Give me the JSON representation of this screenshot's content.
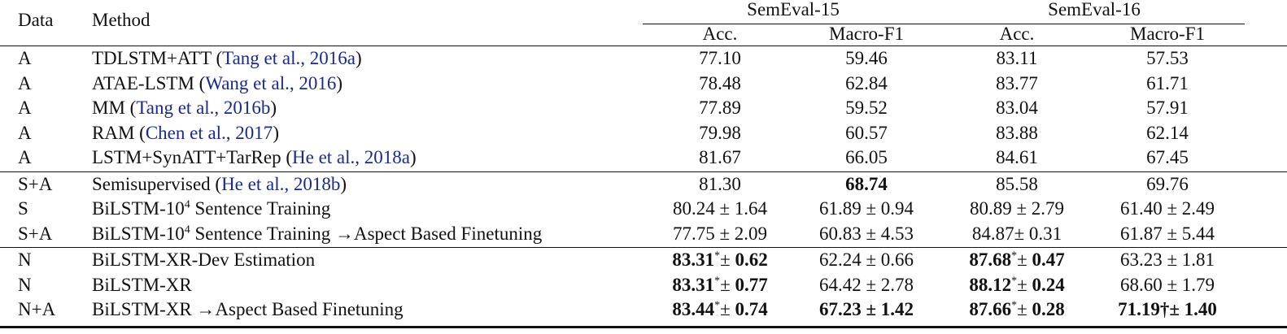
{
  "table": {
    "header": {
      "data": "Data",
      "method": "Method",
      "groups": [
        {
          "title": "SemEval-15",
          "columns": [
            "Acc.",
            "Macro-F1"
          ]
        },
        {
          "title": "SemEval-16",
          "columns": [
            "Acc.",
            "Macro-F1"
          ]
        }
      ]
    },
    "sections": [
      [
        {
          "data": "A",
          "method": [
            {
              "text": "TDLSTM+ATT ("
            },
            {
              "text": "Tang et al., 2016a",
              "cite": true
            },
            {
              "text": ")"
            }
          ],
          "cells": [
            "77.10",
            "59.46",
            "83.11",
            "57.53"
          ]
        },
        {
          "data": "A",
          "method": [
            {
              "text": "ATAE-LSTM ("
            },
            {
              "text": "Wang et al., 2016",
              "cite": true
            },
            {
              "text": ")"
            }
          ],
          "cells": [
            "78.48",
            "62.84",
            "83.77",
            "61.71"
          ]
        },
        {
          "data": "A",
          "method": [
            {
              "text": "MM ("
            },
            {
              "text": "Tang et al., 2016b",
              "cite": true
            },
            {
              "text": ")"
            }
          ],
          "cells": [
            "77.89",
            "59.52",
            "83.04",
            "57.91"
          ]
        },
        {
          "data": "A",
          "method": [
            {
              "text": "RAM ("
            },
            {
              "text": "Chen et al., 2017",
              "cite": true
            },
            {
              "text": ")"
            }
          ],
          "cells": [
            "79.98",
            "60.57",
            "83.88",
            "62.14"
          ]
        },
        {
          "data": "A",
          "method": [
            {
              "text": "LSTM+SynATT+TarRep ("
            },
            {
              "text": "He et al., 2018a",
              "cite": true
            },
            {
              "text": ")"
            }
          ],
          "cells": [
            "81.67",
            "66.05",
            "84.61",
            "67.45"
          ]
        }
      ],
      [
        {
          "data": "S+A",
          "method": [
            {
              "text": "Semisupervised ("
            },
            {
              "text": "He et al., 2018b",
              "cite": true
            },
            {
              "text": ")"
            }
          ],
          "cells": [
            "81.30",
            [
              {
                "text": "68.74",
                "bold": true
              }
            ],
            "85.58",
            "69.76"
          ]
        },
        {
          "data": "S",
          "method": [
            {
              "text": "BiLSTM-10"
            },
            {
              "text": "4",
              "sup": true
            },
            {
              "text": " Sentence Training"
            }
          ],
          "cells": [
            "80.24 ± 1.64",
            "61.89 ± 0.94",
            "80.89 ± 2.79",
            "61.40 ± 2.49"
          ]
        },
        {
          "data": "S+A",
          "method": [
            {
              "text": "BiLSTM-10"
            },
            {
              "text": "4",
              "sup": true
            },
            {
              "text": " Sentence Training →Aspect Based Finetuning"
            }
          ],
          "cells": [
            "77.75 ± 2.09",
            "60.83 ± 4.53",
            "84.87± 0.31",
            "61.87 ± 5.44"
          ]
        }
      ],
      [
        {
          "data": "N",
          "method": [
            {
              "text": "BiLSTM-XR-Dev Estimation"
            }
          ],
          "cells": [
            [
              {
                "text": "83.31",
                "bold": true
              },
              {
                "text": "*",
                "sup": true
              },
              {
                "text": "± "
              },
              {
                "text": "0.62",
                "bold": true
              }
            ],
            "62.24 ± 0.66",
            [
              {
                "text": "87.68",
                "bold": true
              },
              {
                "text": "*",
                "sup": true
              },
              {
                "text": "± "
              },
              {
                "text": "0.47",
                "bold": true
              }
            ],
            "63.23 ± 1.81"
          ]
        },
        {
          "data": "N",
          "method": [
            {
              "text": "BiLSTM-XR"
            }
          ],
          "cells": [
            [
              {
                "text": "83.31",
                "bold": true
              },
              {
                "text": "*",
                "sup": true
              },
              {
                "text": "± "
              },
              {
                "text": "0.77",
                "bold": true
              }
            ],
            "64.42 ± 2.78",
            [
              {
                "text": "88.12",
                "bold": true
              },
              {
                "text": "*",
                "sup": true
              },
              {
                "text": "± "
              },
              {
                "text": "0.24",
                "bold": true
              }
            ],
            "68.60 ± 1.79"
          ]
        },
        {
          "data": "N+A",
          "method": [
            {
              "text": "BiLSTM-XR →Aspect Based Finetuning"
            }
          ],
          "cells": [
            [
              {
                "text": "83.44",
                "bold": true
              },
              {
                "text": "*",
                "sup": true
              },
              {
                "text": "± "
              },
              {
                "text": "0.74",
                "bold": true
              }
            ],
            [
              {
                "text": "67.23 ± 1.42",
                "bold": true
              }
            ],
            [
              {
                "text": "87.66",
                "bold": true
              },
              {
                "text": "*",
                "sup": true
              },
              {
                "text": "± "
              },
              {
                "text": "0.28",
                "bold": true
              }
            ],
            [
              {
                "text": "71.19†± 1.40",
                "bold": true
              }
            ]
          ]
        }
      ]
    ]
  }
}
